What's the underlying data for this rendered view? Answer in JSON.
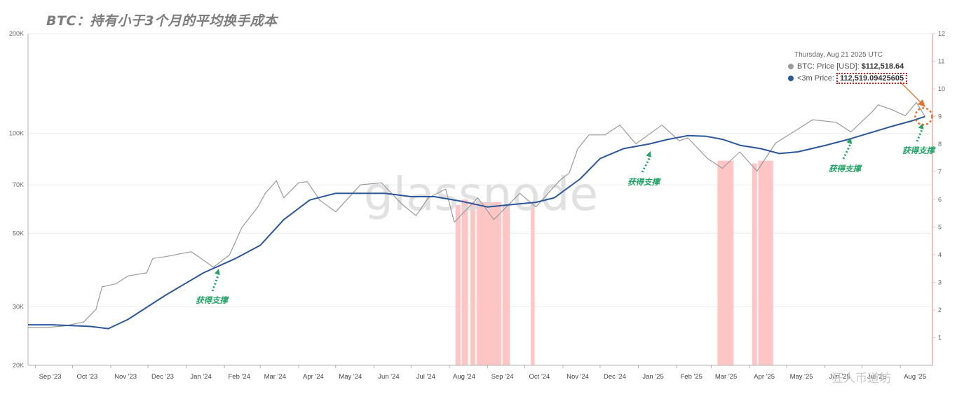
{
  "title": "BTC：持有小于3个月的平均换手成本",
  "watermark": "glassnode",
  "corner_watermark": "狂人币道坊",
  "tooltip": {
    "date": "Thursday, Aug 21 2025 UTC",
    "price_label": "BTC: Price [USD]: ",
    "price_value": "$112,518.64",
    "cost_label": "<3m Price: ",
    "cost_value": "112,519.09425605"
  },
  "colors": {
    "price": "#9a9a9a",
    "cost": "#2b579a",
    "band": "#ffc4c4",
    "support": "#1fa463",
    "highlight": "#e8702a"
  },
  "chart_data": {
    "type": "line",
    "title": "BTC：持有小于3个月的平均换手成本",
    "y_scale": "log",
    "y_ticks": [
      "20K",
      "30K",
      "50K",
      "70K",
      "100K",
      "200K"
    ],
    "y2_ticks": [
      "1",
      "2",
      "3",
      "4",
      "5",
      "6",
      "7",
      "8",
      "9",
      "10",
      "11",
      "12"
    ],
    "x_ticks": [
      "Sep '23",
      "Oct '23",
      "Nov '23",
      "Dec '23",
      "Jan '24",
      "Feb '24",
      "Mar '24",
      "Apr '24",
      "May '24",
      "Jun '24",
      "Jul '24",
      "Aug '24",
      "Sep '24",
      "Oct '24",
      "Nov '24",
      "Dec '24",
      "Jan '25",
      "Feb '25",
      "Mar '25",
      "Apr '25",
      "May '25",
      "Jun '25",
      "Jul '25",
      "Aug '25"
    ],
    "grid": true,
    "series": [
      {
        "name": "BTC: Price [USD]",
        "x": [
          "2023-08-26",
          "2023-09-10",
          "2023-09-25",
          "2023-10-10",
          "2023-10-20",
          "2023-10-25",
          "2023-11-05",
          "2023-11-15",
          "2023-11-30",
          "2023-12-05",
          "2023-12-15",
          "2024-01-05",
          "2024-01-11",
          "2024-01-23",
          "2024-02-05",
          "2024-02-15",
          "2024-02-28",
          "2024-03-05",
          "2024-03-14",
          "2024-03-20",
          "2024-04-01",
          "2024-04-08",
          "2024-04-18",
          "2024-05-01",
          "2024-05-21",
          "2024-06-07",
          "2024-06-24",
          "2024-07-05",
          "2024-07-15",
          "2024-07-29",
          "2024-08-05",
          "2024-08-24",
          "2024-09-06",
          "2024-09-27",
          "2024-10-10",
          "2024-10-29",
          "2024-11-06",
          "2024-11-13",
          "2024-11-22",
          "2024-12-05",
          "2024-12-17",
          "2024-12-30",
          "2025-01-20",
          "2025-02-03",
          "2025-02-10",
          "2025-02-26",
          "2025-03-10",
          "2025-03-24",
          "2025-04-07",
          "2025-04-22",
          "2025-05-10",
          "2025-05-22",
          "2025-06-10",
          "2025-06-22",
          "2025-07-10",
          "2025-07-14",
          "2025-07-25",
          "2025-08-05",
          "2025-08-14",
          "2025-08-21"
        ],
        "values": [
          26000,
          26000,
          26300,
          27000,
          29500,
          34500,
          35200,
          37200,
          38000,
          42000,
          42500,
          44000,
          42500,
          39500,
          43000,
          52000,
          60000,
          66000,
          72000,
          64000,
          71000,
          71500,
          63000,
          58000,
          70000,
          71000,
          61000,
          56500,
          64000,
          68000,
          54000,
          64000,
          55000,
          66000,
          60000,
          72000,
          76000,
          90000,
          99000,
          99000,
          106000,
          93000,
          106000,
          95000,
          97000,
          84000,
          78500,
          88000,
          77000,
          93500,
          103000,
          110000,
          108000,
          101000,
          117000,
          122000,
          118000,
          113000,
          124000,
          112500
        ]
      },
      {
        "name": "<3m Price",
        "x": [
          "2023-08-26",
          "2023-09-15",
          "2023-10-15",
          "2023-10-30",
          "2023-11-15",
          "2023-12-15",
          "2024-01-15",
          "2024-02-10",
          "2024-03-01",
          "2024-03-20",
          "2024-04-10",
          "2024-05-01",
          "2024-05-20",
          "2024-06-10",
          "2024-07-01",
          "2024-07-20",
          "2024-08-10",
          "2024-09-01",
          "2024-09-20",
          "2024-10-10",
          "2024-10-25",
          "2024-11-15",
          "2024-12-01",
          "2024-12-20",
          "2025-01-10",
          "2025-01-25",
          "2025-02-10",
          "2025-02-25",
          "2025-03-10",
          "2025-03-25",
          "2025-04-10",
          "2025-04-25",
          "2025-05-10",
          "2025-06-01",
          "2025-06-20",
          "2025-07-10",
          "2025-07-25",
          "2025-08-10",
          "2025-08-21"
        ],
        "values": [
          26500,
          26500,
          26200,
          25800,
          27500,
          32500,
          38000,
          42000,
          46000,
          55000,
          63000,
          66000,
          66000,
          66000,
          64500,
          64500,
          62500,
          60000,
          61000,
          62000,
          64000,
          73000,
          84000,
          90000,
          93000,
          96000,
          98500,
          98000,
          96000,
          92000,
          90000,
          87000,
          88000,
          92000,
          96000,
          101000,
          105000,
          109000,
          112519.09
        ]
      }
    ],
    "y2_series": {
      "name": "",
      "x": [
        "2024-08-06",
        "2024-08-10",
        "2024-08-11",
        "2024-08-16",
        "2024-08-18",
        "2024-08-22",
        "2024-08-23",
        "2024-09-12",
        "2024-09-13",
        "2024-09-19",
        "2024-10-06",
        "2024-10-09",
        "2025-03-06",
        "2025-03-19",
        "2025-04-03",
        "2025-04-07",
        "2025-04-08",
        "2025-04-20"
      ],
      "values": [
        5.8,
        5.8,
        6.0,
        6.0,
        5.9,
        5.9,
        5.9,
        5.9,
        5.8,
        5.8,
        5.9,
        5.9,
        7.4,
        7.4,
        7.3,
        7.3,
        7.4,
        7.4
      ]
    },
    "annotations": [
      "获得支撑",
      "获得支撑",
      "获得支撑",
      "获得支撑"
    ]
  }
}
